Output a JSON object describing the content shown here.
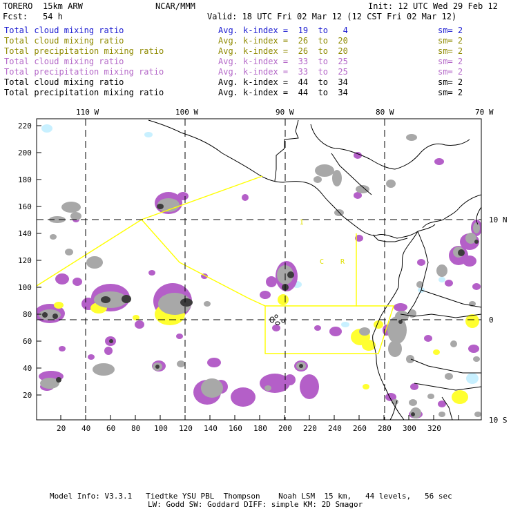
{
  "header": {
    "model_name": "TORERO",
    "resolution": "15km ARW",
    "org": "NCAR/MMM",
    "init": "Init: 12 UTC Wed 29 Feb 12",
    "fcst_label": "Fcst:",
    "fcst_value": "54 h",
    "valid": "Valid: 18 UTC Fri 02 Mar 12 (12 CST Fri 02 Mar 12)"
  },
  "legend": [
    {
      "field": "Total cloud mixing ratio",
      "kindex": "Avg. k-index =  19  to   4",
      "sm": "sm= 2",
      "color": "#1a1ad0"
    },
    {
      "field": "Total cloud mixing ratio",
      "kindex": "Avg. k-index =  26  to  20",
      "sm": "sm= 2",
      "color": "#8f8a00"
    },
    {
      "field": "Total precipitation mixing ratio",
      "kindex": "Avg. k-index =  26  to  20",
      "sm": "sm= 2",
      "color": "#8f8a00"
    },
    {
      "field": "Total cloud mixing ratio",
      "kindex": "Avg. k-index =  33  to  25",
      "sm": "sm= 2",
      "color": "#b468c8"
    },
    {
      "field": "Total precipitation mixing ratio",
      "kindex": "Avg. k-index =  33  to  25",
      "sm": "sm= 2",
      "color": "#b468c8"
    },
    {
      "field": "Total cloud mixing ratio",
      "kindex": "Avg. k-index =  44  to  34",
      "sm": "sm= 2",
      "color": "#000000"
    },
    {
      "field": "Total precipitation mixing ratio",
      "kindex": "Avg. k-index =  44  to  34",
      "sm": "sm= 2",
      "color": "#000000"
    }
  ],
  "map": {
    "top_labels": [
      "110 W",
      "100 W",
      "90 W",
      "80 W",
      "70 W"
    ],
    "right_labels": [
      "10 N",
      "0",
      "10 S"
    ],
    "left_ticks": [
      "220",
      "200",
      "180",
      "160",
      "140",
      "120",
      "100",
      "80",
      "60",
      "40",
      "20"
    ],
    "bottom_ticks": [
      "20",
      "40",
      "60",
      "80",
      "100",
      "120",
      "140",
      "160",
      "180",
      "200",
      "220",
      "240",
      "260",
      "280",
      "300",
      "320"
    ],
    "region_labels": [
      "I",
      "C",
      "R"
    ],
    "colors": {
      "gray": "#a8a8a8",
      "dark": "#3c3c3c",
      "purple": "#b45fc8",
      "yellow": "#ffff30",
      "cyan": "#c8f0ff",
      "boundary": "#ffff00",
      "grid": "#000000"
    }
  },
  "footer": {
    "line1": "Model Info: V3.3.1   Tiedtke YSU PBL  Thompson    Noah LSM  15 km,   44 levels,   56 sec",
    "line2": "LW: Godd SW: Goddard DIFF: simple KM: 2D Smagor"
  }
}
